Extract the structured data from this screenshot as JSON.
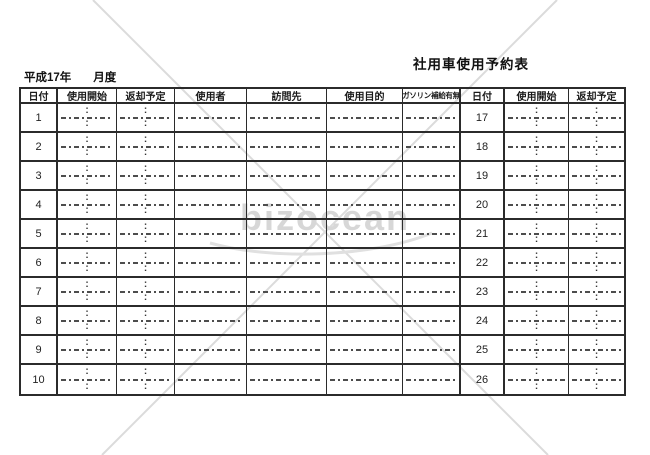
{
  "document": {
    "era_label": "平成17年",
    "month_suffix_label": "月度",
    "title": "社用車使用予約表"
  },
  "table": {
    "columns": [
      {
        "key": "date-left",
        "label": "日付",
        "type": "date"
      },
      {
        "key": "use-start-left",
        "label": "使用開始",
        "type": "time"
      },
      {
        "key": "return-plan-left",
        "label": "返却予定",
        "type": "time"
      },
      {
        "key": "user",
        "label": "使用者",
        "type": "blank"
      },
      {
        "key": "destination",
        "label": "訪問先",
        "type": "blank"
      },
      {
        "key": "purpose",
        "label": "使用目的",
        "type": "blank"
      },
      {
        "key": "gasoline",
        "label": "ガソリン補給有無",
        "type": "blank"
      },
      {
        "key": "date-right",
        "label": "日付",
        "type": "date"
      },
      {
        "key": "use-start-right",
        "label": "使用開始",
        "type": "time"
      },
      {
        "key": "return-plan-right",
        "label": "返却予定",
        "type": "time"
      }
    ],
    "left_dates": [
      "1",
      "2",
      "3",
      "4",
      "5",
      "6",
      "7",
      "8",
      "9",
      "10"
    ],
    "right_dates": [
      "17",
      "18",
      "19",
      "20",
      "21",
      "22",
      "23",
      "24",
      "25",
      "26"
    ],
    "time_separator": ":"
  },
  "watermark": {
    "logo_text": "bizocean",
    "line_color": "#d9d9d9",
    "text_color": "#d7d7d7"
  }
}
